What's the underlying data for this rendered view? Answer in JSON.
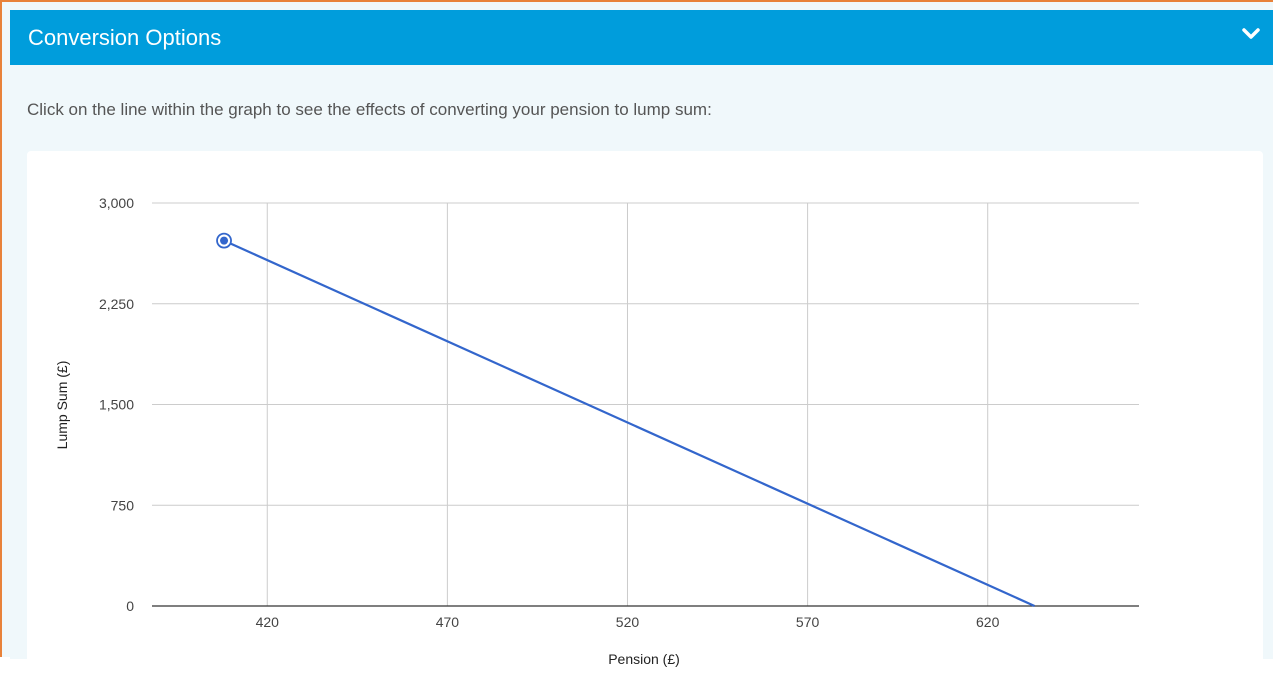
{
  "panel": {
    "title": "Conversion Options",
    "toggle_icon": "chevron-down-icon",
    "instruction": "Click on the line within the graph to see the effects of converting your pension to lump sum:"
  },
  "colors": {
    "header_bg": "#009ddc",
    "accent_border": "#e8823a",
    "series_line": "#3366cc",
    "panel_bg": "#f0f8fb"
  },
  "chart_data": {
    "type": "line",
    "title": "",
    "xlabel": "Pension (£)",
    "ylabel": "Lump Sum (£)",
    "xlim": [
      388,
      662
    ],
    "ylim": [
      0,
      3000
    ],
    "x_ticks": [
      420,
      470,
      520,
      570,
      620
    ],
    "x_tick_labels": [
      "420",
      "470",
      "520",
      "570",
      "620"
    ],
    "y_ticks": [
      0,
      750,
      1500,
      2250,
      3000
    ],
    "y_tick_labels": [
      "0",
      "750",
      "1,500",
      "2,250",
      "3,000"
    ],
    "grid": true,
    "series": [
      {
        "x": [
          408,
          633
        ],
        "y": [
          2720,
          0
        ]
      }
    ],
    "selected_point": {
      "x": 408,
      "y": 2720
    }
  }
}
